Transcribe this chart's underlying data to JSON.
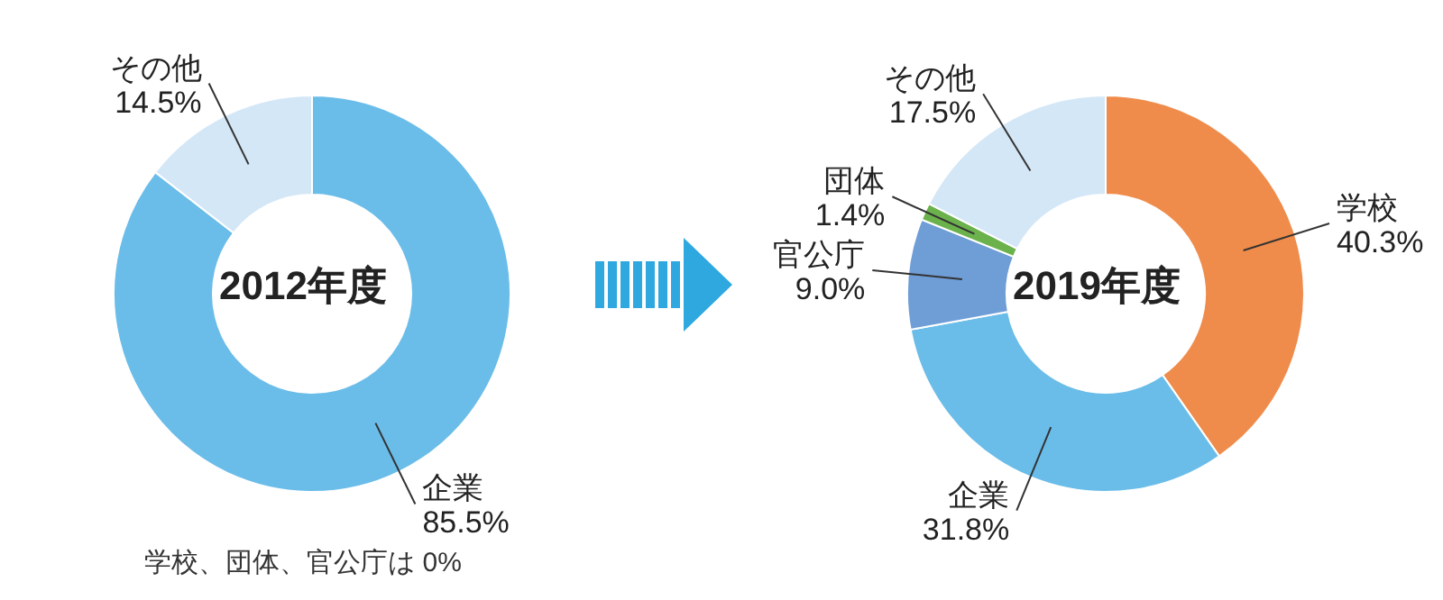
{
  "chart_data": [
    {
      "type": "donut",
      "title": "2012年度",
      "categories": [
        "企業",
        "その他"
      ],
      "values": [
        85.5,
        14.5
      ],
      "colors": [
        "#6bbde9",
        "#d4e7f7"
      ],
      "value_labels": [
        "85.5%",
        "14.5%"
      ],
      "annotations": [
        "学校、団体、官公庁は 0%"
      ]
    },
    {
      "type": "donut",
      "title": "2019年度",
      "categories": [
        "学校",
        "企業",
        "官公庁",
        "団体",
        "その他"
      ],
      "values": [
        40.3,
        31.8,
        9.0,
        1.4,
        17.5
      ],
      "colors": [
        "#f08c4b",
        "#6bbde9",
        "#6f9dd6",
        "#6bb24d",
        "#d4e7f7"
      ],
      "value_labels": [
        "40.3%",
        "31.8%",
        "9.0%",
        "1.4%",
        "17.5%"
      ]
    }
  ]
}
